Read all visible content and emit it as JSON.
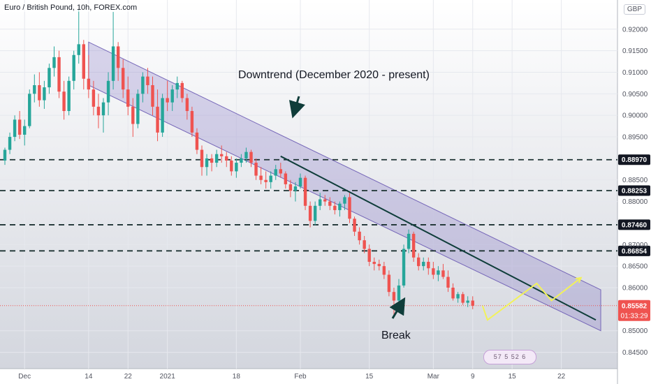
{
  "header": {
    "title": "Euro / British Pound, 10h, FOREX.com",
    "currency": "GBP"
  },
  "annotations": {
    "downtrend": "Downtrend (December 2020 - present)",
    "break": "Break"
  },
  "badge": {
    "text": "57 5 52 6"
  },
  "colors": {
    "up": "#26a69a",
    "down": "#ef5350",
    "channel_fill": "#7e6ec2",
    "channel_stroke": "#7566b8",
    "trendline": "#0f3d3a",
    "support_line": "#1e3333",
    "projection": "#f2f25a",
    "price_label": "#ef5350",
    "level_label_bg": "#131722",
    "arrow": "#0f3d3a"
  },
  "chart_data": {
    "type": "candlestick",
    "title": "Euro / British Pound, 10h, FOREX.com",
    "y_axis": {
      "min": 0.8425,
      "max": 0.9245,
      "ticks": [
        "0.92000",
        "0.91500",
        "0.91000",
        "0.90500",
        "0.90000",
        "0.89500",
        "0.88500",
        "0.88000",
        "0.87000",
        "0.86500",
        "0.86000",
        "0.85000",
        "0.84500"
      ]
    },
    "x_axis": {
      "ticks": [
        {
          "label": "Dec",
          "i": 4
        },
        {
          "label": "14",
          "i": 17
        },
        {
          "label": "22",
          "i": 25
        },
        {
          "label": "2021",
          "i": 33
        },
        {
          "label": "18",
          "i": 47
        },
        {
          "label": "Feb",
          "i": 60
        },
        {
          "label": "15",
          "i": 74
        },
        {
          "label": "Mar",
          "i": 87
        },
        {
          "label": "9",
          "i": 95
        },
        {
          "label": "15",
          "i": 103
        },
        {
          "label": "22",
          "i": 113
        }
      ]
    },
    "candles": [
      [
        0.8895,
        0.8925,
        0.8885,
        0.892
      ],
      [
        0.892,
        0.896,
        0.891,
        0.895
      ],
      [
        0.895,
        0.9,
        0.894,
        0.899
      ],
      [
        0.899,
        0.901,
        0.8945,
        0.8955
      ],
      [
        0.8955,
        0.899,
        0.893,
        0.8975
      ],
      [
        0.8975,
        0.906,
        0.897,
        0.905
      ],
      [
        0.905,
        0.9095,
        0.903,
        0.907
      ],
      [
        0.907,
        0.91,
        0.902,
        0.9035
      ],
      [
        0.9035,
        0.908,
        0.9015,
        0.9065
      ],
      [
        0.9065,
        0.912,
        0.905,
        0.911
      ],
      [
        0.911,
        0.916,
        0.909,
        0.9135
      ],
      [
        0.9135,
        0.915,
        0.904,
        0.9055
      ],
      [
        0.9055,
        0.908,
        0.899,
        0.901
      ],
      [
        0.901,
        0.909,
        0.9,
        0.908
      ],
      [
        0.908,
        0.915,
        0.906,
        0.914
      ],
      [
        0.914,
        0.9245,
        0.912,
        0.9165
      ],
      [
        0.9165,
        0.9175,
        0.906,
        0.9085
      ],
      [
        0.9085,
        0.914,
        0.904,
        0.906
      ],
      [
        0.906,
        0.908,
        0.9,
        0.902
      ],
      [
        0.902,
        0.905,
        0.897,
        0.9
      ],
      [
        0.9,
        0.904,
        0.896,
        0.903
      ],
      [
        0.903,
        0.91,
        0.9,
        0.908
      ],
      [
        0.908,
        0.924,
        0.906,
        0.916
      ],
      [
        0.916,
        0.917,
        0.908,
        0.911
      ],
      [
        0.911,
        0.913,
        0.904,
        0.906
      ],
      [
        0.906,
        0.909,
        0.9,
        0.902
      ],
      [
        0.902,
        0.904,
        0.895,
        0.898
      ],
      [
        0.898,
        0.906,
        0.897,
        0.905
      ],
      [
        0.905,
        0.91,
        0.903,
        0.909
      ],
      [
        0.909,
        0.911,
        0.905,
        0.907
      ],
      [
        0.907,
        0.909,
        0.9,
        0.902
      ],
      [
        0.902,
        0.906,
        0.894,
        0.896
      ],
      [
        0.896,
        0.905,
        0.895,
        0.904
      ],
      [
        0.904,
        0.908,
        0.901,
        0.903
      ],
      [
        0.903,
        0.907,
        0.901,
        0.906
      ],
      [
        0.906,
        0.909,
        0.904,
        0.9075
      ],
      [
        0.9075,
        0.908,
        0.903,
        0.904
      ],
      [
        0.904,
        0.905,
        0.899,
        0.901
      ],
      [
        0.901,
        0.902,
        0.895,
        0.896
      ],
      [
        0.896,
        0.897,
        0.891,
        0.892
      ],
      [
        0.892,
        0.893,
        0.886,
        0.888
      ],
      [
        0.888,
        0.891,
        0.886,
        0.89
      ],
      [
        0.89,
        0.891,
        0.887,
        0.889
      ],
      [
        0.889,
        0.892,
        0.888,
        0.891
      ],
      [
        0.891,
        0.893,
        0.889,
        0.8905
      ],
      [
        0.8905,
        0.8915,
        0.888,
        0.8895
      ],
      [
        0.8895,
        0.8905,
        0.886,
        0.887
      ],
      [
        0.887,
        0.89,
        0.8855,
        0.889
      ],
      [
        0.889,
        0.891,
        0.888,
        0.89
      ],
      [
        0.89,
        0.8925,
        0.889,
        0.8915
      ],
      [
        0.8915,
        0.892,
        0.888,
        0.889
      ],
      [
        0.889,
        0.89,
        0.885,
        0.886
      ],
      [
        0.886,
        0.888,
        0.884,
        0.885
      ],
      [
        0.885,
        0.887,
        0.883,
        0.8845
      ],
      [
        0.8845,
        0.887,
        0.883,
        0.886
      ],
      [
        0.886,
        0.8885,
        0.885,
        0.8875
      ],
      [
        0.8875,
        0.889,
        0.8855,
        0.8865
      ],
      [
        0.8865,
        0.887,
        0.883,
        0.884
      ],
      [
        0.884,
        0.885,
        0.881,
        0.8825
      ],
      [
        0.8825,
        0.8845,
        0.88,
        0.8835
      ],
      [
        0.8835,
        0.8865,
        0.883,
        0.8855
      ],
      [
        0.8855,
        0.886,
        0.878,
        0.879
      ],
      [
        0.879,
        0.88,
        0.874,
        0.8755
      ],
      [
        0.8755,
        0.88,
        0.8745,
        0.879
      ],
      [
        0.879,
        0.882,
        0.878,
        0.8805
      ],
      [
        0.8805,
        0.8815,
        0.879,
        0.88
      ],
      [
        0.88,
        0.881,
        0.878,
        0.879
      ],
      [
        0.879,
        0.88,
        0.877,
        0.878
      ],
      [
        0.878,
        0.88,
        0.8765,
        0.8795
      ],
      [
        0.8795,
        0.8815,
        0.878,
        0.881
      ],
      [
        0.881,
        0.882,
        0.875,
        0.876
      ],
      [
        0.876,
        0.8765,
        0.872,
        0.873
      ],
      [
        0.873,
        0.874,
        0.87,
        0.871
      ],
      [
        0.871,
        0.872,
        0.868,
        0.869
      ],
      [
        0.869,
        0.87,
        0.865,
        0.866
      ],
      [
        0.866,
        0.867,
        0.864,
        0.8655
      ],
      [
        0.8655,
        0.8665,
        0.864,
        0.865
      ],
      [
        0.865,
        0.866,
        0.862,
        0.863
      ],
      [
        0.863,
        0.864,
        0.858,
        0.859
      ],
      [
        0.859,
        0.86,
        0.8535,
        0.857
      ],
      [
        0.857,
        0.862,
        0.856,
        0.8605
      ],
      [
        0.8605,
        0.87,
        0.86,
        0.869
      ],
      [
        0.869,
        0.8735,
        0.868,
        0.8725
      ],
      [
        0.8725,
        0.873,
        0.866,
        0.867
      ],
      [
        0.867,
        0.868,
        0.864,
        0.865
      ],
      [
        0.865,
        0.867,
        0.864,
        0.866
      ],
      [
        0.866,
        0.867,
        0.863,
        0.8645
      ],
      [
        0.8645,
        0.866,
        0.862,
        0.863
      ],
      [
        0.863,
        0.865,
        0.8615,
        0.864
      ],
      [
        0.864,
        0.8655,
        0.862,
        0.8625
      ],
      [
        0.8625,
        0.864,
        0.859,
        0.86
      ],
      [
        0.86,
        0.861,
        0.857,
        0.8575
      ],
      [
        0.8575,
        0.859,
        0.8565,
        0.8585
      ],
      [
        0.8585,
        0.859,
        0.856,
        0.8565
      ],
      [
        0.8565,
        0.858,
        0.8555,
        0.857
      ],
      [
        0.857,
        0.858,
        0.855,
        0.8558
      ]
    ],
    "horizontal_levels": [
      {
        "label": "0.88970",
        "value": 0.8897
      },
      {
        "label": "0.88253",
        "value": 0.88253
      },
      {
        "label": "0.87460",
        "value": 0.8746
      },
      {
        "label": "0.86854",
        "value": 0.86854
      }
    ],
    "current_price": {
      "label": "0.85582",
      "value": 0.85582,
      "countdown": "01:33:29"
    },
    "channel": {
      "upper": [
        {
          "i": 17,
          "y": 0.917
        },
        {
          "i": 121,
          "y": 0.8595
        }
      ],
      "lower": [
        {
          "i": 17,
          "y": 0.907
        },
        {
          "i": 121,
          "y": 0.85
        }
      ]
    },
    "trendline": [
      {
        "i": 56,
        "y": 0.8905
      },
      {
        "i": 120,
        "y": 0.8525
      }
    ],
    "projection": [
      {
        "i": 97,
        "y": 0.8558
      },
      {
        "i": 98,
        "y": 0.8525
      },
      {
        "i": 108,
        "y": 0.861
      },
      {
        "i": 111,
        "y": 0.857
      },
      {
        "i": 117,
        "y": 0.8623
      }
    ]
  }
}
